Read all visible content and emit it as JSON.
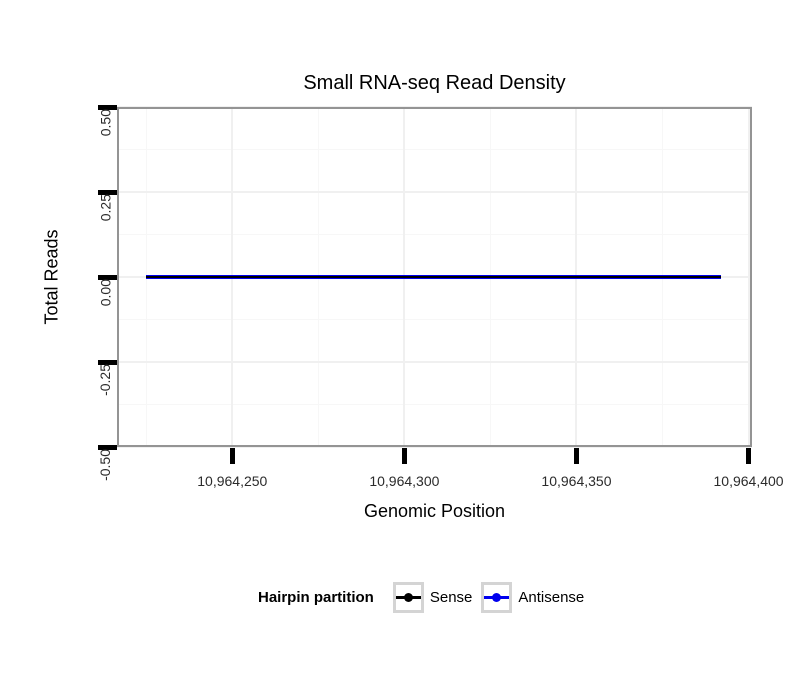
{
  "chart_data": {
    "type": "line",
    "title": "Small RNA-seq Read Density",
    "xlabel": "Genomic Position",
    "ylabel": "Total Reads",
    "xlim": [
      10964216.5,
      10964401
    ],
    "ylim": [
      -0.5,
      0.5
    ],
    "x_ticks": [
      10964250,
      10964300,
      10964350,
      10964400
    ],
    "x_tick_labels": [
      "10,964,250",
      "10,964,300",
      "10,964,350",
      "10,964,400"
    ],
    "x_minor_ticks": [
      10964225,
      10964275,
      10964325,
      10964375
    ],
    "y_ticks": [
      0.5,
      0.25,
      0,
      -0.25,
      -0.5
    ],
    "y_tick_labels": [
      "0.50",
      "0.25",
      "0.00",
      "-0.25",
      "-0.50"
    ],
    "y_minor_ticks": [
      0.375,
      0.125,
      -0.125,
      -0.375
    ],
    "grid": "major+minor",
    "legend_title": "Hairpin partition",
    "legend_position": "bottom",
    "series": [
      {
        "name": "Sense",
        "color": "#000000",
        "line_width": 2,
        "x": [
          10964225,
          10964392
        ],
        "y": [
          0,
          0
        ]
      },
      {
        "name": "Antisense",
        "color": "#0000ee",
        "line_width": 4,
        "x": [
          10964225,
          10964392
        ],
        "y": [
          0,
          0
        ]
      }
    ]
  }
}
